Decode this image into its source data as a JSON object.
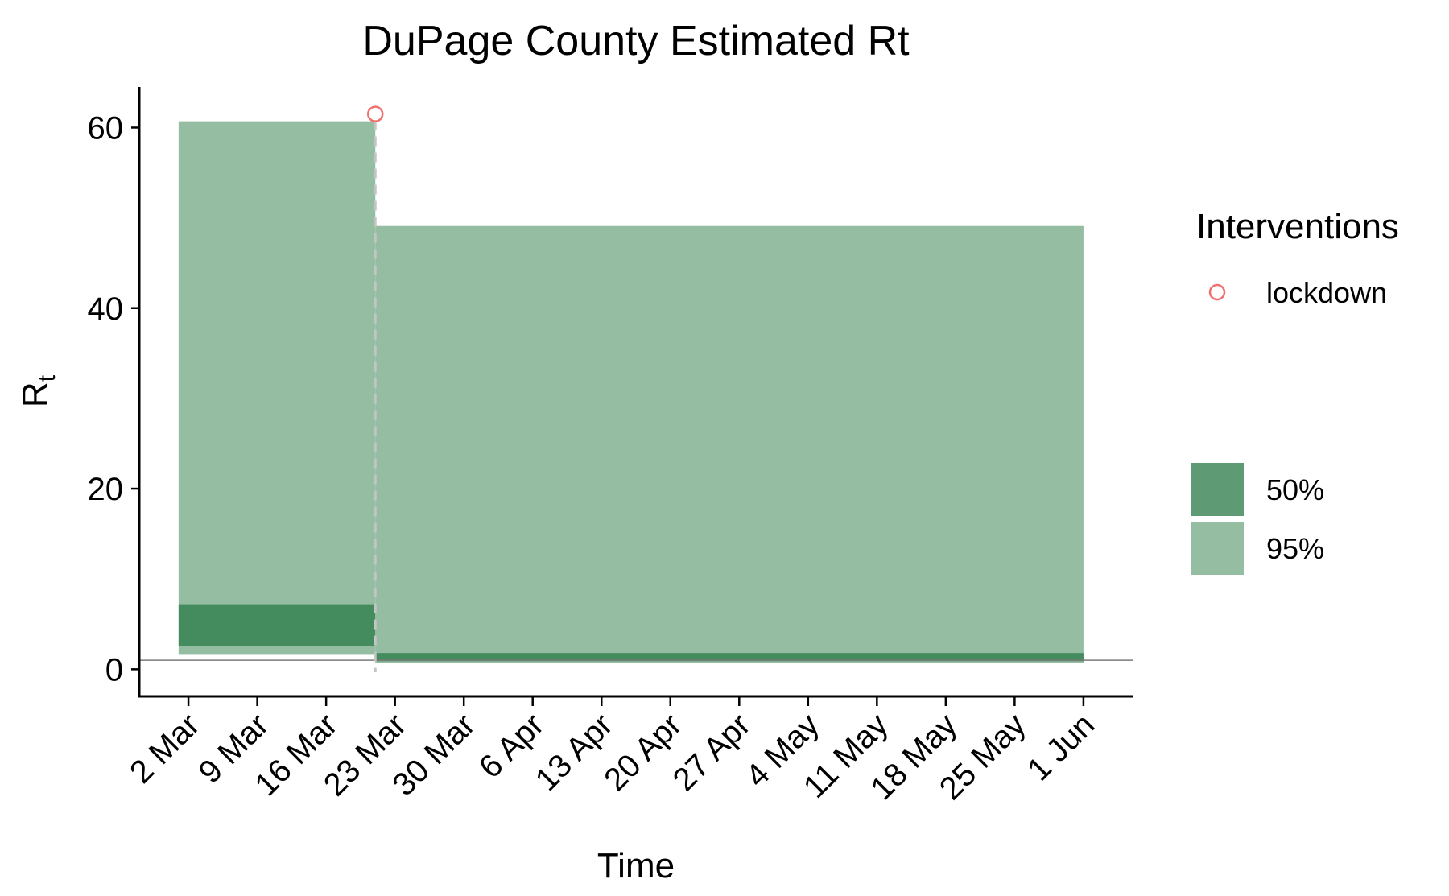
{
  "chart_data": {
    "type": "area",
    "title": "DuPage County Estimated Rt",
    "xlabel": "Time",
    "ylabel": {
      "main": "R",
      "sub": "t"
    },
    "x_ticks": [
      "2020-03-02",
      "2020-03-09",
      "2020-03-16",
      "2020-03-23",
      "2020-03-30",
      "2020-04-06",
      "2020-04-13",
      "2020-04-20",
      "2020-04-27",
      "2020-05-04",
      "2020-05-11",
      "2020-05-18",
      "2020-05-25",
      "2020-06-01"
    ],
    "x_tick_labels": [
      "2 Mar",
      "9 Mar",
      "16 Mar",
      "23 Mar",
      "30 Mar",
      "6 Apr",
      "13 Apr",
      "20 Apr",
      "27 Apr",
      "4 May",
      "11 May",
      "18 May",
      "25 May",
      "1 Jun"
    ],
    "xlim": [
      "2020-02-26",
      "2020-06-06"
    ],
    "y_ticks": [
      0,
      20,
      40,
      60
    ],
    "ylim": [
      -3,
      64.5
    ],
    "reference_line_y": 1,
    "colors": {
      "ci50": "#448c5e",
      "ci95": "#94bda2",
      "legend50": "#5e9b75",
      "legend95": "#94bda2",
      "intervention": "#f06f6f",
      "reference": "#7a7a7a",
      "vline": "#c4c4c4"
    },
    "segments": [
      {
        "start": "2020-03-01",
        "end": "2020-03-21",
        "ci95": [
          1.6,
          60.7
        ],
        "ci50": [
          2.6,
          7.2
        ]
      },
      {
        "start": "2020-03-21",
        "end": "2020-06-01",
        "ci95": [
          0.7,
          49.1
        ],
        "ci50": [
          0.9,
          1.8
        ]
      }
    ],
    "interventions": [
      {
        "name": "lockdown",
        "date": "2020-03-21",
        "marker_y": 61.5
      }
    ],
    "legend": {
      "title": "Interventions",
      "intervention_items": [
        "lockdown"
      ],
      "band_items": [
        {
          "label": "50%",
          "color_key": "legend50"
        },
        {
          "label": "95%",
          "color_key": "legend95"
        }
      ],
      "placement": "right"
    },
    "grid": false
  }
}
